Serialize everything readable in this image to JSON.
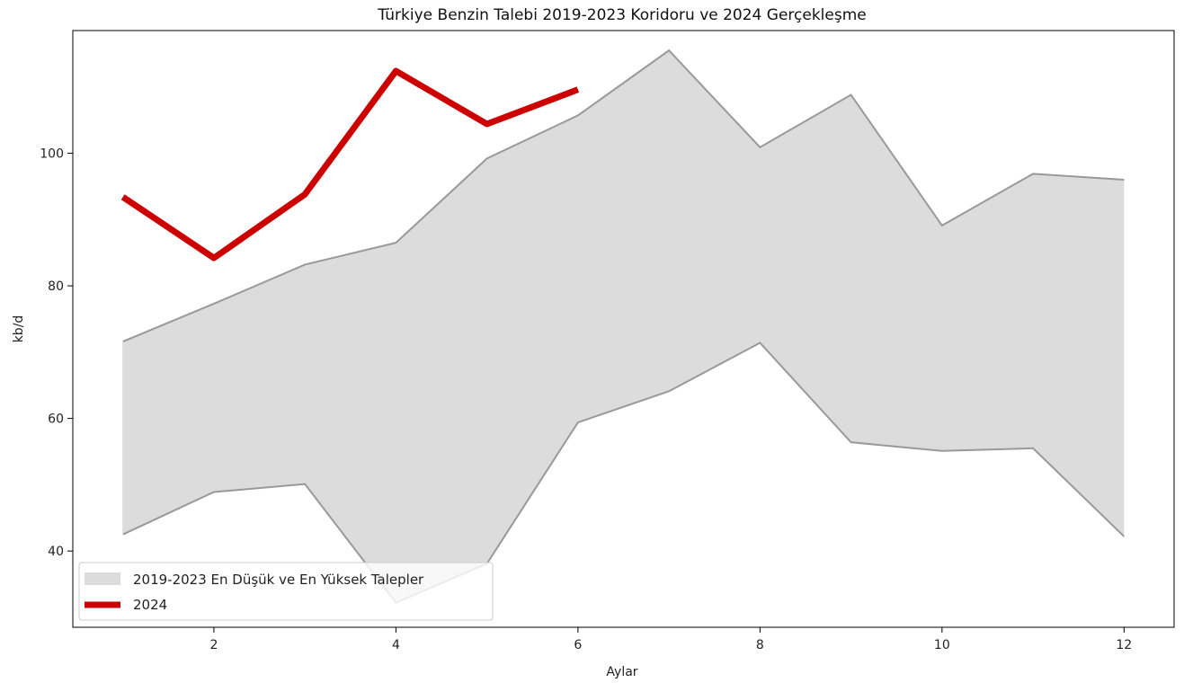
{
  "chart_data": {
    "type": "area",
    "title": "Türkiye Benzin Talebi 2019-2023 Koridoru ve 2024 Gerçekleşme",
    "xlabel": "Aylar",
    "ylabel": "kb/d",
    "xlim": [
      0.45,
      12.55
    ],
    "ylim": [
      28.5,
      118.5
    ],
    "x_ticks": [
      2,
      4,
      6,
      8,
      10,
      12
    ],
    "y_ticks": [
      40,
      60,
      80,
      100
    ],
    "grid": false,
    "legend_position": "lower-left",
    "band": {
      "name": "2019-2023 En Düşük ve En Yüksek Talepler",
      "color": "#dcdcdc",
      "edge_color": "#999999",
      "x": [
        1,
        2,
        3,
        4,
        5,
        6,
        7,
        8,
        9,
        10,
        11,
        12
      ],
      "lower": [
        42.5,
        48.9,
        50.1,
        32.2,
        38.1,
        59.4,
        64.1,
        71.4,
        56.4,
        55.1,
        55.5,
        42.2
      ],
      "upper": [
        71.6,
        77.3,
        83.2,
        86.5,
        99.2,
        105.7,
        115.5,
        100.9,
        108.8,
        89.1,
        96.9,
        96.0
      ]
    },
    "series": [
      {
        "name": "2024",
        "color": "#cc0000",
        "x": [
          1,
          2,
          3,
          4,
          5,
          6
        ],
        "values": [
          93.4,
          84.2,
          93.8,
          112.4,
          104.4,
          109.6
        ]
      }
    ]
  }
}
